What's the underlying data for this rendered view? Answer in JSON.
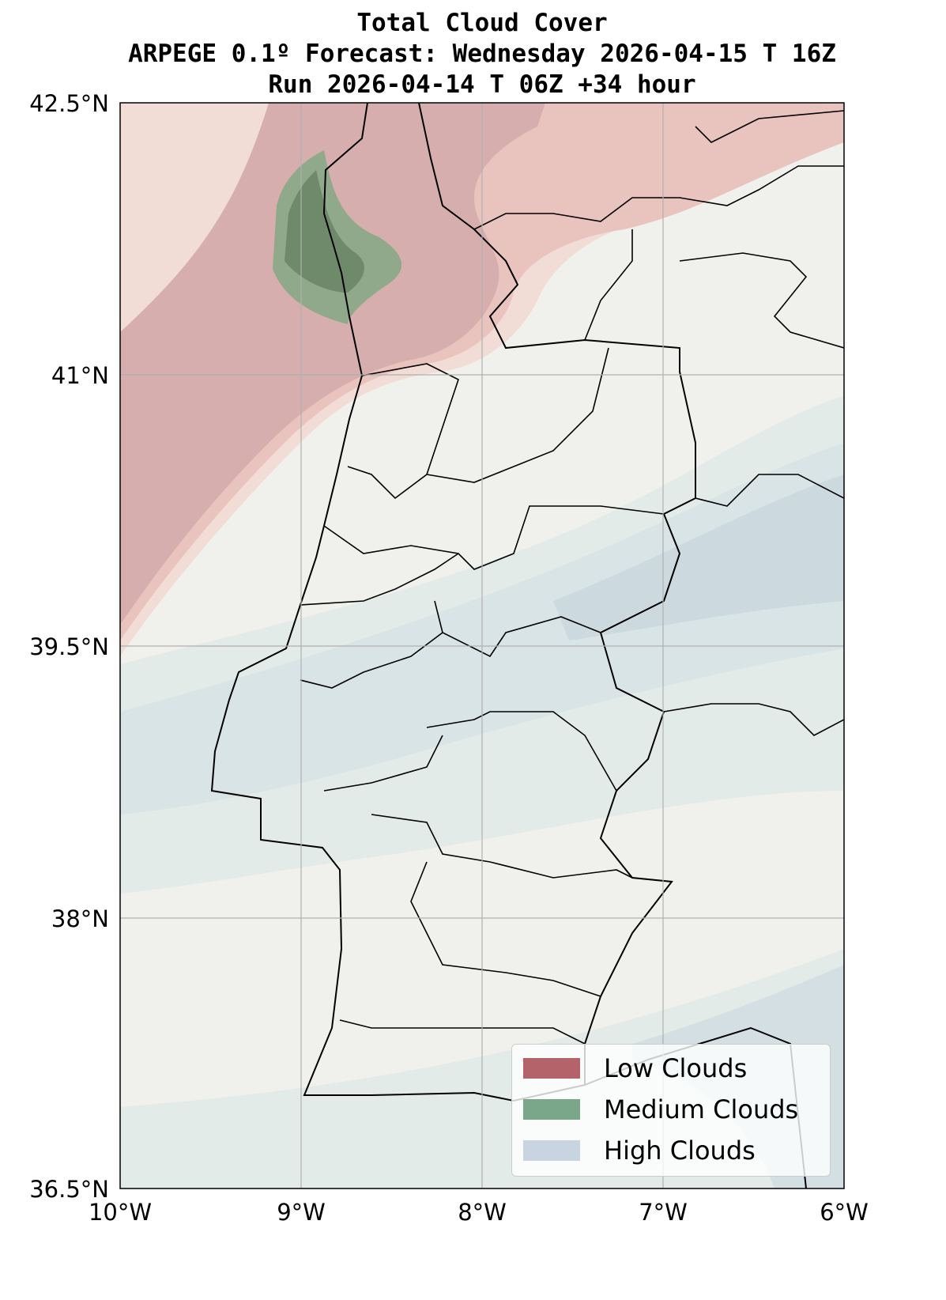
{
  "title": {
    "line1": "Total Cloud Cover",
    "line2": "ARPEGE 0.1º Forecast: Wednesday 2026-04-15 T 16Z",
    "line3": "Run 2026-04-14 T 06Z +34 hour"
  },
  "axes": {
    "lat_ticks": [
      "42.5°N",
      "41°N",
      "39.5°N",
      "38°N",
      "36.5°N"
    ],
    "lon_ticks": [
      "10°W",
      "9°W",
      "8°W",
      "7°W",
      "6°W"
    ],
    "lat_range": [
      36.5,
      42.5
    ],
    "lon_range": [
      -10,
      -6
    ]
  },
  "legend": {
    "placement": "bottom-right",
    "items": [
      {
        "label": "Low Clouds",
        "color": "#b5636a"
      },
      {
        "label": "Medium Clouds",
        "color": "#7aa68a"
      },
      {
        "label": "High Clouds",
        "color": "#c8d4e0"
      }
    ]
  },
  "colors": {
    "background": "#f0f1ec",
    "low": "#c9a3a8",
    "medium": "#5f7a5d",
    "high": "#d3dfe2"
  }
}
